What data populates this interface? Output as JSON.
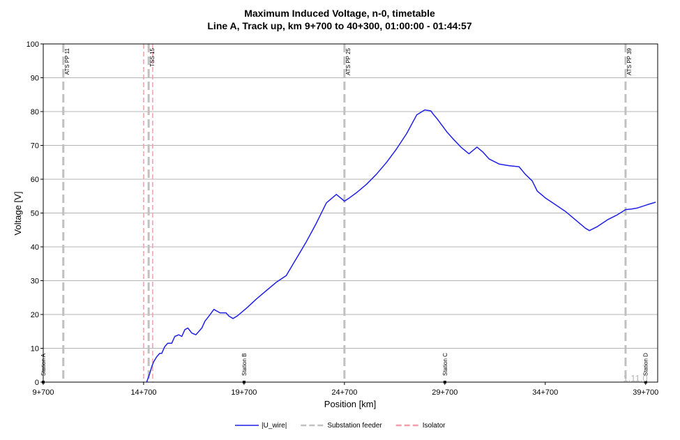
{
  "chart_data": {
    "type": "line",
    "title": "Maximum Induced Voltage, n-0, timetable",
    "subtitle": "Line A, Track up, km 9+700 to 40+300, 01:00:00 - 01:44:57",
    "xlabel": "Position [km]",
    "ylabel": "Voltage [V]",
    "xlim": [
      9.7,
      40.3
    ],
    "ylim": [
      0,
      100
    ],
    "grid": true,
    "legend_position": "bottom",
    "x_ticks": [
      {
        "value": 9.7,
        "label": "9+700"
      },
      {
        "value": 14.7,
        "label": "14+700"
      },
      {
        "value": 19.7,
        "label": "19+700"
      },
      {
        "value": 24.7,
        "label": "24+700"
      },
      {
        "value": 29.7,
        "label": "29+700"
      },
      {
        "value": 34.7,
        "label": "34+700"
      },
      {
        "value": 39.7,
        "label": "39+700"
      }
    ],
    "y_ticks": [
      0,
      10,
      20,
      30,
      40,
      50,
      60,
      70,
      80,
      90,
      100
    ],
    "series": [
      {
        "name": "|U_wire|",
        "color": "#1f1fe8",
        "x": [
          14.85,
          15.0,
          15.1,
          15.2,
          15.35,
          15.5,
          15.6,
          15.75,
          15.9,
          16.1,
          16.25,
          16.45,
          16.6,
          16.75,
          16.9,
          17.1,
          17.3,
          17.45,
          17.6,
          17.75,
          17.95,
          18.2,
          18.5,
          18.8,
          18.95,
          19.15,
          19.35,
          19.55,
          19.85,
          20.3,
          20.8,
          21.3,
          21.8,
          22.35,
          22.8,
          23.3,
          23.8,
          24.3,
          24.7,
          24.95,
          25.3,
          25.8,
          26.3,
          26.8,
          27.3,
          27.8,
          28.3,
          28.7,
          29.0,
          29.15,
          29.3,
          29.55,
          29.8,
          30.1,
          30.5,
          30.9,
          31.3,
          31.6,
          31.75,
          31.9,
          32.4,
          32.9,
          33.4,
          33.7,
          34.05,
          34.3,
          34.7,
          35.2,
          35.7,
          36.2,
          36.7,
          36.9,
          37.3,
          37.8,
          38.3,
          38.7,
          39.0,
          39.3,
          39.8,
          40.2
        ],
        "values": [
          0,
          2.5,
          4.5,
          6,
          7.5,
          8.5,
          8.5,
          10.5,
          11.5,
          11.5,
          13.5,
          14,
          13.5,
          15.5,
          16,
          14.5,
          14,
          15,
          16,
          18,
          19.5,
          21.5,
          20.5,
          20.5,
          19.5,
          18.8,
          19.5,
          20.5,
          22,
          24.5,
          27,
          29.5,
          31.5,
          37,
          41.5,
          47,
          53,
          55.5,
          53.5,
          54.5,
          56,
          58.5,
          61.5,
          65,
          69,
          73.5,
          79,
          80.5,
          80.2,
          79,
          78,
          76,
          74,
          72,
          69.5,
          67.5,
          69.5,
          68,
          67,
          66,
          64.5,
          64,
          63.7,
          61.5,
          59.5,
          56.5,
          54.5,
          52.5,
          50.5,
          48,
          45.5,
          44.8,
          46,
          48,
          49.5,
          51,
          51.2,
          51.5,
          52.5,
          53.2
        ]
      }
    ],
    "vertical_markers": [
      {
        "x": 10.7,
        "label": "ATS PP 11",
        "series": "Substation feeder"
      },
      {
        "x": 14.95,
        "label": "TSS 15",
        "series": "Substation feeder"
      },
      {
        "x": 24.7,
        "label": "ATS PP 25",
        "series": "Substation feeder"
      },
      {
        "x": 38.7,
        "label": "ATS PP 39",
        "series": "Substation feeder"
      }
    ],
    "isolators": [
      14.7,
      15.15
    ],
    "stations": [
      {
        "x": 9.7,
        "label": "Station A"
      },
      {
        "x": 19.7,
        "label": "Station B"
      },
      {
        "x": 29.7,
        "label": "Station C"
      },
      {
        "x": 39.7,
        "label": "Station D"
      }
    ],
    "legend": [
      {
        "label": "|U_wire|",
        "color": "#1f1fe8",
        "style": "solid"
      },
      {
        "label": "Substation feeder",
        "color": "#c0c0c0",
        "style": "dashed"
      },
      {
        "label": "Isolator",
        "color": "#f0a0a8",
        "style": "dashed"
      }
    ],
    "version_label": "1.11.0"
  }
}
